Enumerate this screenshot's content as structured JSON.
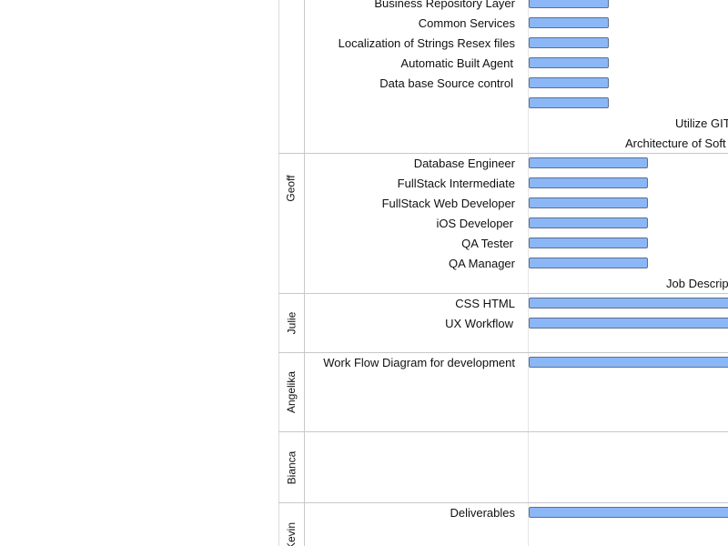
{
  "colors": {
    "bar_fill": "#8cb7f6",
    "bar_border": "#5c6f8f",
    "grid_line": "#c8c8c8"
  },
  "owners": {
    "geoff": "Geoff",
    "julie": "Julie",
    "angelika": "Angelika",
    "bianca": "Bianca",
    "kevin": "Kevin"
  },
  "tasks": {
    "top": [
      "Business Repository Layer",
      "Common Services",
      "Localization of Strings Resex files",
      "Automatic Built Agent",
      "Data base Source control"
    ],
    "geoff": [
      "Database Engineer",
      "FullStack Intermediate",
      "FullStack Web Developer",
      "iOS Developer",
      "QA Tester",
      "QA Manager"
    ],
    "julie": [
      "CSS HTML",
      "UX Workflow"
    ],
    "angelika": [
      "Work Flow Diagram for development"
    ],
    "kevin": [
      "Deliverables"
    ]
  },
  "notes": {
    "utilize_git": "Utilize GIT",
    "architecture": "Architecture of Soft",
    "job_description": "Job Descrip"
  }
}
